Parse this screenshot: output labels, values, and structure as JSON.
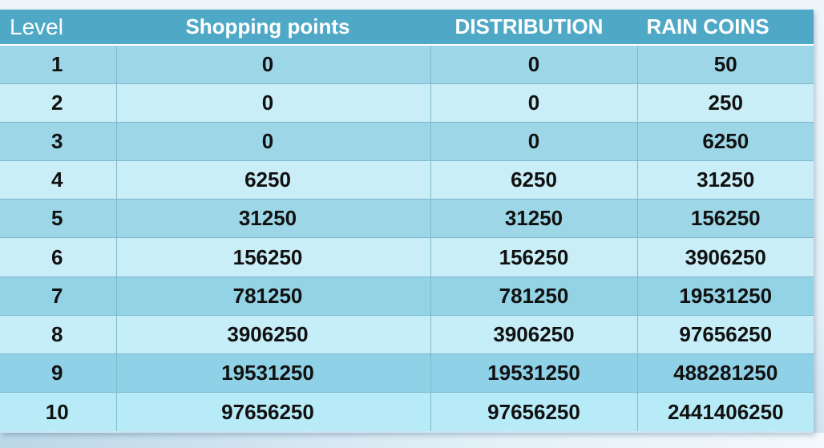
{
  "table": {
    "headers": [
      "Level",
      "Shopping points",
      "DISTRIBUTION",
      "RAIN COINS"
    ],
    "rows": [
      {
        "level": "1",
        "shopping_points": "0",
        "distribution": "0",
        "rain_coins": "50"
      },
      {
        "level": "2",
        "shopping_points": "0",
        "distribution": "0",
        "rain_coins": "250"
      },
      {
        "level": "3",
        "shopping_points": "0",
        "distribution": "0",
        "rain_coins": "6250"
      },
      {
        "level": "4",
        "shopping_points": "6250",
        "distribution": "6250",
        "rain_coins": "31250"
      },
      {
        "level": "5",
        "shopping_points": "31250",
        "distribution": "31250",
        "rain_coins": "156250"
      },
      {
        "level": "6",
        "shopping_points": "156250",
        "distribution": "156250",
        "rain_coins": "3906250"
      },
      {
        "level": "7",
        "shopping_points": "781250",
        "distribution": "781250",
        "rain_coins": "19531250"
      },
      {
        "level": "8",
        "shopping_points": "3906250",
        "distribution": "3906250",
        "rain_coins": "97656250"
      },
      {
        "level": "9",
        "shopping_points": "19531250",
        "distribution": "19531250",
        "rain_coins": "488281250"
      },
      {
        "level": "10",
        "shopping_points": "97656250",
        "distribution": "97656250",
        "rain_coins": "2441406250"
      }
    ]
  },
  "colors": {
    "header_bg": "#4fa9c6",
    "row_dark": "#9dd6e7",
    "row_light": "#c9eef8",
    "text": "#111111"
  }
}
